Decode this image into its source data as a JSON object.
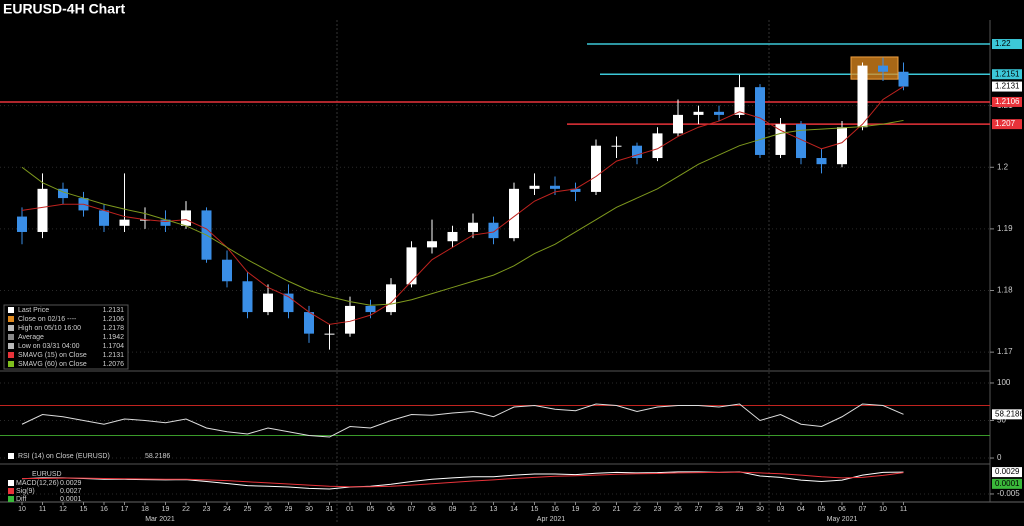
{
  "chart_data": [
    {
      "type": "candlestick",
      "title": "EURUSD-4H Chart",
      "categories": [
        "10",
        "11",
        "12",
        "15",
        "16",
        "17",
        "18",
        "19",
        "22",
        "23",
        "24",
        "25",
        "26",
        "29",
        "30",
        "31",
        "01",
        "05",
        "06",
        "07",
        "08",
        "09",
        "12",
        "13",
        "14",
        "15",
        "16",
        "19",
        "20",
        "21",
        "22",
        "23",
        "26",
        "27",
        "28",
        "29",
        "30",
        "03",
        "04",
        "05",
        "06",
        "07",
        "10",
        "11"
      ],
      "months": [
        "Mar 2021",
        "Apr 2021",
        "May 2021"
      ],
      "open": [
        1.192,
        1.1895,
        1.1965,
        1.195,
        1.193,
        1.1905,
        1.1915,
        1.1915,
        1.1905,
        1.193,
        1.185,
        1.1815,
        1.1765,
        1.1795,
        1.1765,
        1.173,
        1.173,
        1.1775,
        1.1765,
        1.181,
        1.187,
        1.188,
        1.1895,
        1.191,
        1.1885,
        1.1965,
        1.197,
        1.1965,
        1.196,
        1.2035,
        1.2035,
        1.2015,
        1.2055,
        1.2085,
        1.209,
        1.2085,
        1.213,
        1.202,
        1.207,
        1.2015,
        1.2005,
        1.2065,
        1.2165,
        1.2155
      ],
      "high": [
        1.1935,
        1.199,
        1.1975,
        1.196,
        1.194,
        1.199,
        1.1935,
        1.193,
        1.1945,
        1.1935,
        1.1865,
        1.183,
        1.181,
        1.181,
        1.1775,
        1.1745,
        1.179,
        1.1785,
        1.182,
        1.188,
        1.1915,
        1.1905,
        1.1925,
        1.192,
        1.1975,
        1.199,
        1.1985,
        1.1975,
        1.2045,
        1.205,
        1.204,
        1.2065,
        1.211,
        1.21,
        1.21,
        1.215,
        1.2135,
        1.208,
        1.2075,
        1.203,
        1.2075,
        1.217,
        1.2178,
        1.217
      ],
      "low": [
        1.1875,
        1.1885,
        1.194,
        1.192,
        1.1895,
        1.1895,
        1.19,
        1.1895,
        1.19,
        1.1845,
        1.1805,
        1.1755,
        1.176,
        1.1755,
        1.1715,
        1.1704,
        1.1725,
        1.1755,
        1.176,
        1.1805,
        1.186,
        1.187,
        1.1885,
        1.1875,
        1.188,
        1.1955,
        1.1955,
        1.1945,
        1.1955,
        1.2015,
        1.2005,
        1.201,
        1.205,
        1.207,
        1.2075,
        1.208,
        1.2015,
        1.2015,
        1.2005,
        1.199,
        1.2,
        1.206,
        1.214,
        1.2125
      ],
      "close": [
        1.1895,
        1.1965,
        1.195,
        1.193,
        1.1905,
        1.1915,
        1.1915,
        1.1905,
        1.193,
        1.185,
        1.1815,
        1.1765,
        1.1795,
        1.1765,
        1.173,
        1.173,
        1.1775,
        1.1765,
        1.181,
        1.187,
        1.188,
        1.1895,
        1.191,
        1.1885,
        1.1965,
        1.197,
        1.1965,
        1.196,
        1.2035,
        1.2035,
        1.2015,
        1.2055,
        1.2085,
        1.209,
        1.2085,
        1.213,
        1.202,
        1.207,
        1.2015,
        1.2005,
        1.2065,
        1.2165,
        1.2155,
        1.2131
      ],
      "up_color": "#ffffff",
      "down_color": "#3a8ee6",
      "overlays": [
        {
          "color": "#c0231f",
          "values": [
            1.193,
            1.1935,
            1.194,
            1.194,
            1.193,
            1.192,
            1.1915,
            1.1912,
            1.1915,
            1.19,
            1.187,
            1.183,
            1.1805,
            1.179,
            1.1765,
            1.1745,
            1.175,
            1.176,
            1.178,
            1.1815,
            1.185,
            1.187,
            1.189,
            1.1895,
            1.192,
            1.1945,
            1.196,
            1.1965,
            1.1985,
            1.201,
            1.202,
            1.203,
            1.205,
            1.2065,
            1.2075,
            1.209,
            1.208,
            1.206,
            1.2045,
            1.203,
            1.204,
            1.207,
            1.211,
            1.2131
          ]
        },
        {
          "color": "#7f9a1e",
          "values": [
            1.2,
            1.1975,
            1.196,
            1.195,
            1.194,
            1.1932,
            1.1925,
            1.1915,
            1.1905,
            1.189,
            1.187,
            1.185,
            1.1832,
            1.1815,
            1.18,
            1.179,
            1.1782,
            1.1776,
            1.1778,
            1.1785,
            1.1795,
            1.1805,
            1.1815,
            1.1825,
            1.184,
            1.186,
            1.1875,
            1.1895,
            1.1915,
            1.1935,
            1.195,
            1.1965,
            1.1985,
            1.2005,
            1.202,
            1.2035,
            1.2045,
            1.2055,
            1.206,
            1.2062,
            1.2064,
            1.2066,
            1.207,
            1.2076
          ]
        }
      ],
      "ylim": [
        1.1671,
        1.2239
      ],
      "yticks": [
        1.17,
        1.18,
        1.19,
        1.2,
        1.21
      ],
      "levels": [
        {
          "value": 1.22,
          "color": "#3cc8d8"
        },
        {
          "value": 1.2151,
          "color": "#3cc8d8"
        },
        {
          "value": 1.2106,
          "color": "#e8333a"
        },
        {
          "value": 1.207,
          "color": "#e8333a"
        }
      ],
      "last_price": 1.2131,
      "highlight_range": [
        1.2143,
        1.2179
      ],
      "highlight_color": "#e08a1e",
      "legend": [
        {
          "label": "Last Price",
          "value": 1.2131,
          "color": "#ffffff"
        },
        {
          "label": "Close on 02/16 ----",
          "value": 1.2106,
          "color": "#e08a1e"
        },
        {
          "label": "High on 05/10 16:00",
          "value": 1.2178,
          "color": "#bbbbbb"
        },
        {
          "label": "Average",
          "value": 1.1942,
          "color": "#888888"
        },
        {
          "label": "Low on 03/31 04:00",
          "value": 1.1704,
          "color": "#bbbbbb"
        },
        {
          "label": "SMAVG (15)  on Close",
          "value": 1.2131,
          "color": "#e8333a"
        },
        {
          "label": "SMAVG (60)  on Close",
          "value": 1.2076,
          "color": "#7fbf1e"
        }
      ]
    },
    {
      "type": "line",
      "title": "RSI (14)  on Close (EURUSD)",
      "color": "#dddddd",
      "values": [
        45,
        58,
        55,
        50,
        45,
        52,
        50,
        47,
        52,
        40,
        35,
        32,
        40,
        35,
        30,
        28,
        42,
        40,
        50,
        58,
        57,
        60,
        62,
        55,
        68,
        70,
        65,
        63,
        72,
        70,
        62,
        68,
        70,
        70,
        68,
        72,
        50,
        58,
        45,
        42,
        55,
        72,
        70,
        58.2186
      ],
      "ylim": [
        -5.3,
        113.3
      ],
      "yticks": [
        0,
        50,
        100
      ],
      "levels": [
        {
          "value": 70,
          "color": "#c0231f"
        },
        {
          "value": 30,
          "color": "#3a9a2a"
        }
      ]
    },
    {
      "type": "line",
      "title": "EURUSD",
      "series": [
        {
          "name": "MACD(12,26)",
          "color": "#ffffff",
          "values": [
            0.0005,
            0.0008,
            0.0008,
            0.0006,
            0.0003,
            0.0003,
            0.0002,
            0.0001,
            0.0002,
            -0.0005,
            -0.0012,
            -0.002,
            -0.0022,
            -0.0025,
            -0.003,
            -0.0032,
            -0.0025,
            -0.0022,
            -0.0015,
            -0.0005,
            0.0003,
            0.0008,
            0.0012,
            0.0012,
            0.0018,
            0.0022,
            0.0022,
            0.002,
            0.0025,
            0.0028,
            0.0026,
            0.0027,
            0.003,
            0.003,
            0.0028,
            0.003,
            0.0015,
            0.001,
            0.0,
            -0.0005,
            0.0,
            0.0018,
            0.0028,
            0.0029
          ]
        },
        {
          "name": "Sig(9)",
          "color": "#e8333a",
          "values": [
            0.0006,
            0.0006,
            0.0007,
            0.0007,
            0.0006,
            0.0005,
            0.0004,
            0.0003,
            0.0003,
            0.0001,
            -0.0002,
            -0.0006,
            -0.001,
            -0.0014,
            -0.0018,
            -0.0022,
            -0.0024,
            -0.0024,
            -0.0022,
            -0.0018,
            -0.0013,
            -0.0008,
            -0.0003,
            0.0001,
            0.0006,
            0.001,
            0.0014,
            0.0016,
            0.0018,
            0.0021,
            0.0023,
            0.0024,
            0.0026,
            0.0027,
            0.0028,
            0.0029,
            0.0026,
            0.0023,
            0.0018,
            0.0012,
            0.0008,
            0.001,
            0.0017,
            0.0027
          ]
        }
      ],
      "diff": {
        "name": "Diff",
        "value": 0.0001,
        "color": "#3ab83a"
      },
      "ylim": [
        -0.0079,
        0.0051
      ],
      "yticks": [
        -0.005
      ]
    }
  ]
}
